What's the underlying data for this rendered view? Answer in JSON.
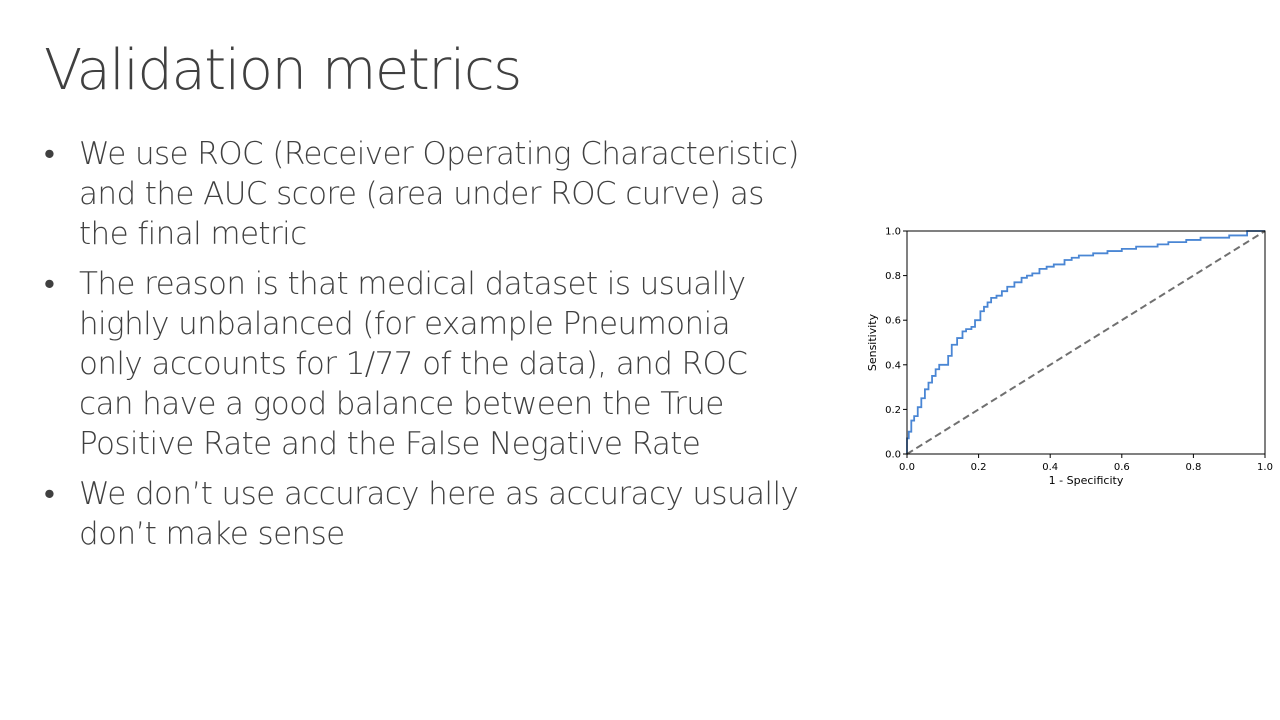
{
  "slide": {
    "title": "Validation metrics",
    "bullet_symbol": "•",
    "bullets": [
      {
        "lines": [
          "We use ROC (Receiver Operating Characteristic)",
          "and the AUC score (area under ROC curve) as",
          "the final metric"
        ]
      },
      {
        "lines": [
          "The reason is that medical dataset is usually",
          "highly unbalanced (for example Pneumonia",
          "only accounts for 1/77 of the data), and ROC",
          "can have a good balance between the True",
          "Positive Rate and the False Negative Rate"
        ]
      },
      {
        "lines": [
          "We don’t use accuracy here as accuracy usually",
          "don’t make sense"
        ]
      }
    ]
  },
  "chart_data": {
    "type": "line",
    "xlabel": "1 - Specificity",
    "ylabel": "Sensitivity",
    "xlim": [
      0,
      1
    ],
    "ylim": [
      0,
      1
    ],
    "xticks": [
      "0.0",
      "0.2",
      "0.4",
      "0.6",
      "0.8",
      "1.0"
    ],
    "yticks": [
      "0.0",
      "0.2",
      "0.4",
      "0.6",
      "0.8",
      "1.0"
    ],
    "grid": false,
    "series": [
      {
        "color": "#4a86d4",
        "style": "step",
        "x": [
          0,
          0,
          0.005,
          0.005,
          0.012,
          0.012,
          0.02,
          0.02,
          0.03,
          0.03,
          0.04,
          0.04,
          0.05,
          0.05,
          0.06,
          0.06,
          0.07,
          0.07,
          0.08,
          0.08,
          0.09,
          0.09,
          0.1,
          0.1,
          0.115,
          0.115,
          0.125,
          0.125,
          0.14,
          0.14,
          0.155,
          0.155,
          0.165,
          0.165,
          0.18,
          0.18,
          0.19,
          0.19,
          0.205,
          0.205,
          0.215,
          0.215,
          0.225,
          0.225,
          0.235,
          0.235,
          0.25,
          0.25,
          0.265,
          0.265,
          0.28,
          0.28,
          0.3,
          0.3,
          0.32,
          0.32,
          0.335,
          0.335,
          0.35,
          0.35,
          0.37,
          0.37,
          0.39,
          0.39,
          0.41,
          0.41,
          0.44,
          0.44,
          0.46,
          0.46,
          0.48,
          0.48,
          0.52,
          0.52,
          0.56,
          0.56,
          0.6,
          0.6,
          0.64,
          0.64,
          0.7,
          0.7,
          0.73,
          0.73,
          0.78,
          0.78,
          0.82,
          0.82,
          0.9,
          0.9,
          0.95,
          0.95,
          1.0
        ],
        "y": [
          0,
          0.07,
          0.07,
          0.1,
          0.1,
          0.15,
          0.15,
          0.17,
          0.17,
          0.21,
          0.21,
          0.25,
          0.25,
          0.29,
          0.29,
          0.32,
          0.32,
          0.35,
          0.35,
          0.38,
          0.38,
          0.4,
          0.4,
          0.4,
          0.4,
          0.44,
          0.44,
          0.49,
          0.49,
          0.52,
          0.52,
          0.55,
          0.55,
          0.56,
          0.56,
          0.57,
          0.57,
          0.6,
          0.6,
          0.64,
          0.64,
          0.66,
          0.66,
          0.68,
          0.68,
          0.7,
          0.7,
          0.71,
          0.71,
          0.73,
          0.73,
          0.75,
          0.75,
          0.77,
          0.77,
          0.79,
          0.79,
          0.8,
          0.8,
          0.81,
          0.81,
          0.83,
          0.83,
          0.84,
          0.84,
          0.85,
          0.85,
          0.87,
          0.87,
          0.88,
          0.88,
          0.89,
          0.89,
          0.9,
          0.9,
          0.91,
          0.91,
          0.92,
          0.92,
          0.93,
          0.93,
          0.94,
          0.94,
          0.95,
          0.95,
          0.96,
          0.96,
          0.97,
          0.97,
          0.98,
          0.98,
          1.0,
          1.0
        ]
      },
      {
        "color": "#707070",
        "style": "dashed",
        "x": [
          0,
          1
        ],
        "y": [
          0,
          1
        ]
      }
    ]
  }
}
